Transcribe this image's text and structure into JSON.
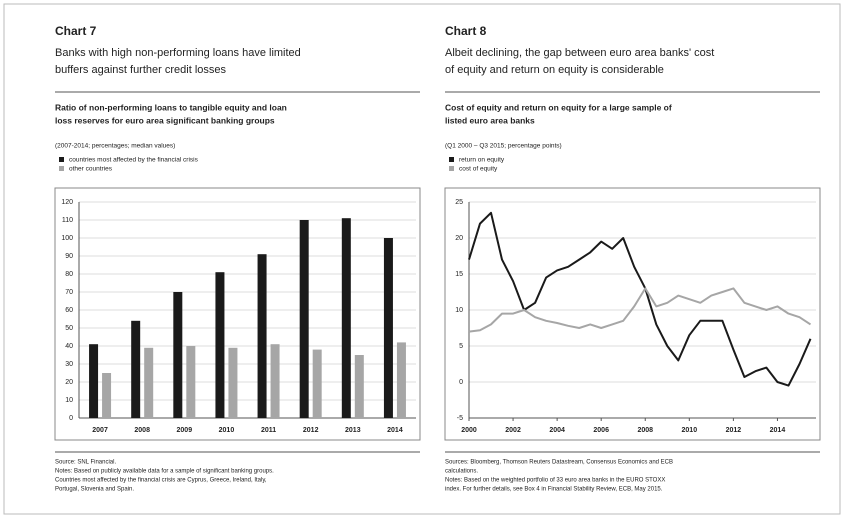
{
  "chart_data": [
    {
      "type": "bar",
      "label": "Chart 7",
      "subtitle": [
        "Banks with high non-performing loans have limited",
        "buffers against further credit losses"
      ],
      "title": [
        "Ratio of non-performing loans to tangible equity and loan",
        "loss reserves for euro area significant banking groups"
      ],
      "units": "(2007-2014; percentages; median values)",
      "categories": [
        "2007",
        "2008",
        "2009",
        "2010",
        "2011",
        "2012",
        "2013",
        "2014"
      ],
      "series": [
        {
          "name": "countries most affected by the financial crisis",
          "color": "#1a1a1a",
          "values": [
            41,
            54,
            70,
            81,
            91,
            110,
            111,
            100
          ]
        },
        {
          "name": "other countries",
          "color": "#a6a6a6",
          "values": [
            25,
            39,
            40,
            39,
            41,
            38,
            35,
            42
          ]
        }
      ],
      "ylim": [
        0,
        120
      ],
      "yticks": [
        0,
        10,
        20,
        30,
        40,
        50,
        60,
        70,
        80,
        90,
        100,
        110,
        120
      ],
      "grid": true,
      "sources": [
        "Source: SNL Financial.",
        "Notes: Based on publicly available data for a sample of significant banking groups.",
        "Countries most affected by the financial crisis are Cyprus, Greece, Ireland, Italy,",
        "Portugal, Slovenia and Spain."
      ]
    },
    {
      "type": "line",
      "label": "Chart 8",
      "subtitle": [
        "Albeit declining, the gap between euro area banks' cost",
        "of equity and return on equity is considerable"
      ],
      "title": [
        "Cost of equity and return on equity for a large sample of",
        "listed euro area banks"
      ],
      "units": "(Q1 2000 – Q3 2015; percentage points)",
      "x": [
        2000,
        2000.5,
        2001,
        2001.5,
        2002,
        2002.5,
        2003,
        2003.5,
        2004,
        2004.5,
        2005,
        2005.5,
        2006,
        2006.5,
        2007,
        2007.5,
        2008,
        2008.5,
        2009,
        2009.5,
        2010,
        2010.5,
        2011,
        2011.5,
        2012,
        2012.5,
        2013,
        2013.5,
        2014,
        2014.5,
        2015,
        2015.5
      ],
      "series": [
        {
          "name": "return on equity",
          "color": "#1a1a1a",
          "values": [
            17,
            22,
            23.5,
            17,
            14,
            10,
            11,
            14.5,
            15.5,
            16,
            17,
            18,
            19.5,
            18.5,
            20,
            16,
            13,
            8,
            5,
            3,
            6.5,
            8.5,
            8.5,
            8.5,
            4.5,
            0.7,
            1.5,
            2,
            0,
            -0.5,
            2.5,
            6
          ]
        },
        {
          "name": "cost of equity",
          "color": "#a6a6a6",
          "values": [
            7,
            7.2,
            8,
            9.5,
            9.5,
            10,
            9,
            8.5,
            8.2,
            7.8,
            7.5,
            8,
            7.5,
            8,
            8.5,
            10.5,
            13,
            10.5,
            11,
            12,
            11.5,
            11,
            12,
            12.5,
            13,
            11,
            10.5,
            10,
            10.5,
            9.5,
            9,
            8
          ]
        }
      ],
      "xlim": [
        2000,
        2015.75
      ],
      "xticks": [
        2000,
        2002,
        2004,
        2006,
        2008,
        2010,
        2012,
        2014
      ],
      "ylim": [
        -5,
        25
      ],
      "yticks": [
        -5,
        0,
        5,
        10,
        15,
        20,
        25
      ],
      "grid": true,
      "sources": [
        "Sources: Bloomberg, Thomson Reuters Datastream, Consensus Economics and ECB",
        "calculations.",
        "Notes: Based on the weighted portfolio of 33 euro area banks in the EURO STOXX",
        "index. For further details, see Box 4 in Financial Stability Review, ECB, May 2015."
      ]
    }
  ]
}
